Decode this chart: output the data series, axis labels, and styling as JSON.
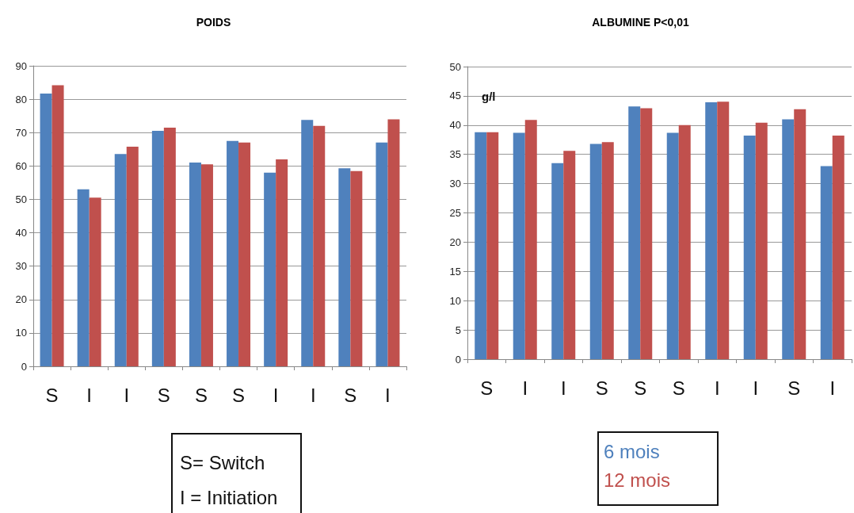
{
  "chart_data": [
    {
      "type": "bar",
      "title": "POIDS",
      "categories": [
        "S",
        "I",
        "I",
        "S",
        "S",
        "S",
        "I",
        "I",
        "S",
        "I"
      ],
      "series": [
        {
          "color": "#4f81bd",
          "values": [
            81.7,
            53,
            63.6,
            70.5,
            61,
            67.5,
            58,
            73.8,
            59.3,
            67
          ]
        },
        {
          "color": "#c0504d",
          "values": [
            84.2,
            50.5,
            65.8,
            71.5,
            60.5,
            67,
            62,
            72,
            58.5,
            74
          ]
        }
      ],
      "ylim": [
        0,
        90
      ],
      "yticks": [
        0,
        10,
        20,
        30,
        40,
        50,
        60,
        70,
        80,
        90
      ],
      "grid": "y",
      "legend": false,
      "annotations": [
        "S= Switch",
        "I = Initiation"
      ]
    },
    {
      "type": "bar",
      "title": "ALBUMINE P<0,01",
      "ylabel": "g/l",
      "categories": [
        "S",
        "I",
        "I",
        "S",
        "S",
        "S",
        "I",
        "I",
        "S",
        "I"
      ],
      "series": [
        {
          "name": "6 mois",
          "color": "#4f81bd",
          "values": [
            38.8,
            38.7,
            33.5,
            36.8,
            43.2,
            38.7,
            43.9,
            38.2,
            41,
            33
          ]
        },
        {
          "name": "12 mois",
          "color": "#c0504d",
          "values": [
            38.8,
            40.9,
            35.6,
            37.1,
            42.9,
            40,
            44,
            40.4,
            42.7,
            38.2
          ]
        }
      ],
      "ylim": [
        0,
        50
      ],
      "yticks": [
        0,
        5,
        10,
        15,
        20,
        25,
        30,
        35,
        40,
        45,
        50
      ],
      "grid": "y",
      "legend": "bottom"
    }
  ]
}
